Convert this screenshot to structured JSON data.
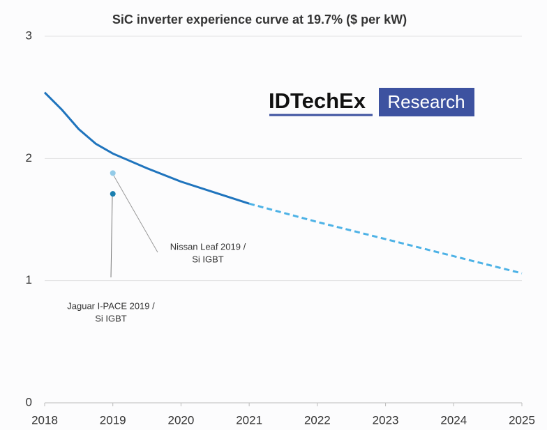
{
  "chart_data": {
    "type": "line",
    "title": "SiC inverter experience curve at 19.7% ($ per kW)",
    "logo": {
      "brand": "IDTechEx",
      "tag": "Research"
    },
    "x": [
      2018,
      2018.25,
      2018.5,
      2018.75,
      2019,
      2019.5,
      2020,
      2020.5,
      2021,
      2022,
      2023,
      2024,
      2025
    ],
    "series": [
      {
        "color": "#1f74bd",
        "dashed": false,
        "values": [
          2.54,
          2.4,
          2.24,
          2.12,
          2.04,
          1.92,
          1.81,
          1.72,
          1.63,
          null,
          null,
          null,
          null
        ]
      },
      {
        "color": "#4db2e6",
        "dashed": true,
        "values": [
          null,
          null,
          null,
          null,
          null,
          null,
          null,
          null,
          1.63,
          1.48,
          1.34,
          1.2,
          1.06
        ]
      }
    ],
    "points": [
      {
        "label": [
          "Nissan Leaf 2019 /",
          "Si IGBT"
        ],
        "x": 2019,
        "y": 1.88,
        "color": "#93cbe8"
      },
      {
        "label": [
          "Jaguar I-PACE 2019 /",
          "Si IGBT"
        ],
        "x": 2019,
        "y": 1.71,
        "color": "#1a7fb0"
      }
    ],
    "xlim": [
      2018,
      2025
    ],
    "xticks": [
      2018,
      2019,
      2020,
      2021,
      2022,
      2023,
      2024,
      2025
    ],
    "ylim": [
      0,
      3
    ],
    "yticks": [
      0,
      1,
      2,
      3
    ],
    "grid": true
  }
}
